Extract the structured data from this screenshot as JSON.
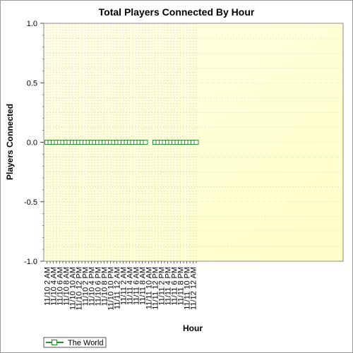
{
  "chart_data": {
    "type": "line",
    "title": "Total Players Connected By Hour",
    "xlabel": "Hour",
    "ylabel": "Players Connected",
    "ylim": [
      -1.0,
      1.0
    ],
    "y_ticks": [
      "1.0",
      "0.5",
      "0.0",
      "-0.5",
      "-1.0"
    ],
    "y_tick_values": [
      1.0,
      0.5,
      0.0,
      -0.5,
      -1.0
    ],
    "grid": true,
    "legend_position": "bottom-left",
    "x_tick_labels": [
      "11/10 2 AM",
      "11/10 4 AM",
      "11/10 6 AM",
      "11/10 8 AM",
      "11/10 10 AM",
      "11/10 12 PM",
      "11/10 2 PM",
      "11/10 4 PM",
      "11/10 6 PM",
      "11/10 8 PM",
      "11/10 10 PM",
      "11/11 12 AM",
      "11/11 2 AM",
      "11/11 4 AM",
      "11/11 6 AM",
      "11/11 8 AM",
      "11/11 10 AM",
      "11/11 12 PM",
      "11/11 2 PM",
      "11/11 4 PM",
      "11/11 6 PM",
      "11/11 8 PM",
      "11/11 10 PM",
      "11/12 12 AM"
    ],
    "series": [
      {
        "name": "The World",
        "color": "#2e8b2e",
        "segments": [
          {
            "values": [
              0,
              0,
              0,
              0,
              0,
              0,
              0,
              0,
              0,
              0,
              0,
              0,
              0,
              0,
              0,
              0,
              0,
              0,
              0,
              0,
              0,
              0,
              0,
              0,
              0,
              0,
              0,
              0,
              0,
              0,
              0,
              0
            ]
          },
          {
            "values": [
              0,
              0,
              0,
              0,
              0,
              0,
              0,
              0,
              0,
              0,
              0,
              0,
              0,
              0
            ]
          }
        ]
      }
    ]
  }
}
